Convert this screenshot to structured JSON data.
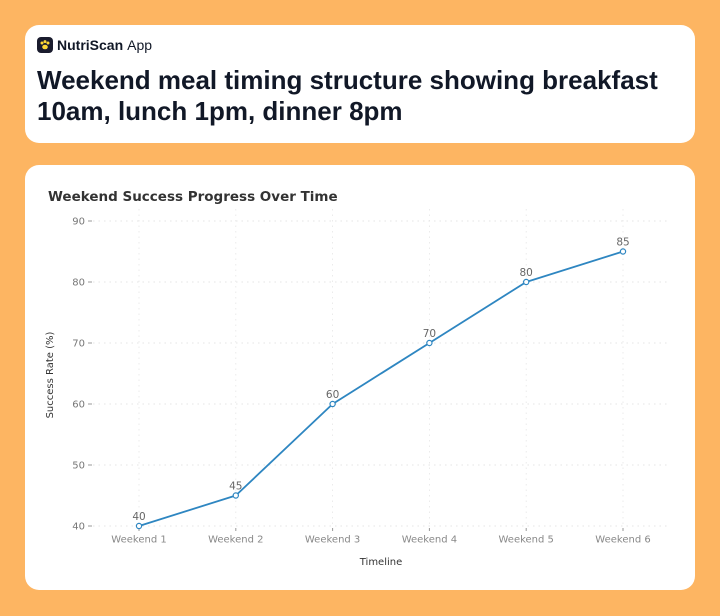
{
  "app": {
    "brand_name": "NutriScan",
    "brand_suffix": "App",
    "brand_icon": "paw-icon",
    "headline": "Weekend meal timing structure showing breakfast 10am, lunch 1pm, dinner 8pm"
  },
  "colors": {
    "background": "#FDB562",
    "card": "#FFFFFF",
    "line": "#2E86C1",
    "text_dark": "#111827"
  },
  "chart_data": {
    "type": "line",
    "title": "Weekend Success Progress Over Time",
    "xlabel": "Timeline",
    "ylabel": "Success Rate (%)",
    "categories": [
      "Weekend 1",
      "Weekend 2",
      "Weekend 3",
      "Weekend 4",
      "Weekend 5",
      "Weekend 6"
    ],
    "series": [
      {
        "values": [
          40,
          45,
          60,
          70,
          80,
          85
        ]
      }
    ],
    "ylim": [
      40,
      90
    ],
    "yticks": [
      40,
      50,
      60,
      70,
      80,
      90
    ],
    "grid": true,
    "data_labels": true,
    "legend": "none"
  }
}
